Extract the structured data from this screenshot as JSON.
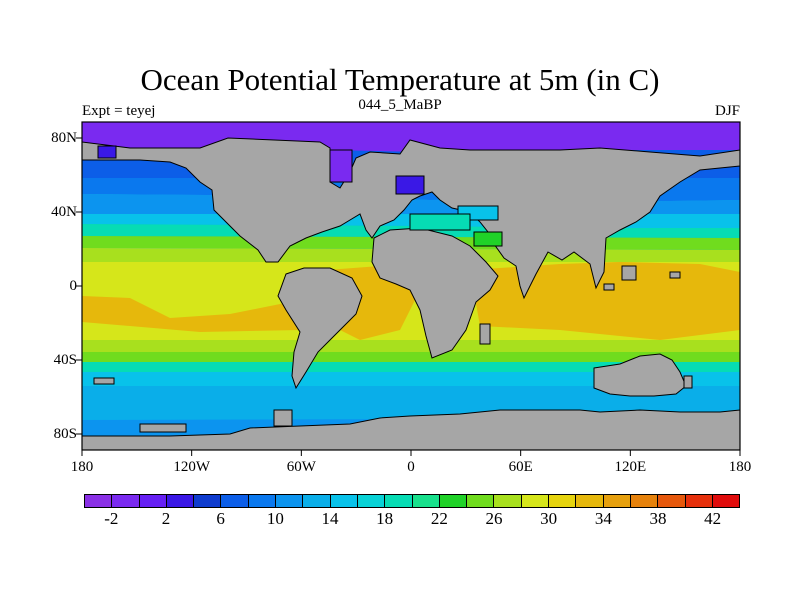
{
  "title": "Ocean Potential Temperature at 5m (in C)",
  "subtitle_left": "Expt = teyej",
  "subtitle_center": "044_5_MaBP",
  "subtitle_right": "DJF",
  "lat_ticks": [
    {
      "label": "80N",
      "lat": 80
    },
    {
      "label": "40N",
      "lat": 40
    },
    {
      "label": "0",
      "lat": 0
    },
    {
      "label": "40S",
      "lat": -40
    },
    {
      "label": "80S",
      "lat": -80
    }
  ],
  "lon_ticks": [
    {
      "label": "180",
      "lon": -180
    },
    {
      "label": "120W",
      "lon": -120
    },
    {
      "label": "60W",
      "lon": -60
    },
    {
      "label": "0",
      "lon": 0
    },
    {
      "label": "60E",
      "lon": 60
    },
    {
      "label": "120E",
      "lon": 120
    },
    {
      "label": "180",
      "lon": 180
    }
  ],
  "colorbar": {
    "colors": [
      "#8a30e6",
      "#7a2af0",
      "#6620f4",
      "#3a18e6",
      "#0f3ccf",
      "#0c5ee8",
      "#0a78ee",
      "#0c94ef",
      "#0aaee9",
      "#08c2ea",
      "#08d2d6",
      "#06dcb4",
      "#18e08c",
      "#20d228",
      "#70dc1e",
      "#a8e01e",
      "#d6e61a",
      "#e6d40e",
      "#e6b80c",
      "#e6a00e",
      "#e6820c",
      "#e6580c",
      "#e6300c",
      "#e00c0c"
    ],
    "labels": [
      {
        "text": "-2",
        "pos": 1
      },
      {
        "text": "2",
        "pos": 3
      },
      {
        "text": "6",
        "pos": 5
      },
      {
        "text": "10",
        "pos": 7
      },
      {
        "text": "14",
        "pos": 9
      },
      {
        "text": "18",
        "pos": 11
      },
      {
        "text": "22",
        "pos": 13
      },
      {
        "text": "26",
        "pos": 15
      },
      {
        "text": "30",
        "pos": 17
      },
      {
        "text": "34",
        "pos": 19
      },
      {
        "text": "38",
        "pos": 21
      },
      {
        "text": "42",
        "pos": 23
      }
    ]
  },
  "colors": {
    "land": "#a6a6a6",
    "polar": "#7a2af0",
    "deep_blue": "#1060e0"
  }
}
